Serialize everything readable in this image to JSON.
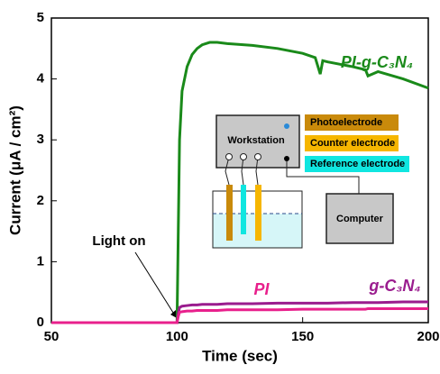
{
  "chart_data": {
    "type": "line",
    "xlabel": "Time (sec)",
    "ylabel": "Current (μA / cm²)",
    "xlim": [
      50,
      200
    ],
    "xticks": [
      50,
      100,
      150,
      200
    ],
    "ylim": [
      0,
      5
    ],
    "yticks": [
      0,
      1,
      2,
      3,
      4,
      5
    ],
    "x": [
      50,
      99,
      100,
      100.5,
      101,
      102,
      104,
      106,
      108,
      110,
      113,
      116,
      120,
      130,
      140,
      150,
      155,
      157,
      158,
      160,
      170,
      175,
      176,
      180,
      190,
      200
    ],
    "series": [
      {
        "name": "PI-g-C₃N₄",
        "color": "#1a8a1a",
        "values": [
          0,
          0,
          0,
          1.5,
          3.0,
          3.8,
          4.2,
          4.4,
          4.5,
          4.56,
          4.6,
          4.6,
          4.58,
          4.55,
          4.5,
          4.42,
          4.35,
          4.08,
          4.3,
          4.28,
          4.2,
          4.15,
          4.05,
          4.12,
          4.0,
          3.85
        ]
      },
      {
        "name": "g-C₃N₄",
        "color": "#9a1c8e",
        "values": [
          0,
          0,
          0,
          0.15,
          0.25,
          0.27,
          0.28,
          0.29,
          0.29,
          0.3,
          0.3,
          0.3,
          0.31,
          0.31,
          0.32,
          0.32,
          0.32,
          0.32,
          0.32,
          0.32,
          0.33,
          0.33,
          0.33,
          0.33,
          0.34,
          0.34
        ]
      },
      {
        "name": "PI",
        "color": "#e8208c",
        "values": [
          0,
          0,
          0,
          0.1,
          0.17,
          0.18,
          0.19,
          0.19,
          0.2,
          0.2,
          0.2,
          0.2,
          0.21,
          0.21,
          0.21,
          0.22,
          0.22,
          0.22,
          0.22,
          0.22,
          0.22,
          0.22,
          0.23,
          0.23,
          0.23,
          0.23
        ]
      }
    ],
    "annotation": "Light on",
    "inset": {
      "workstation": "Workstation",
      "photoelectrode": "Photoelectrode",
      "counter": "Counter electrode",
      "reference": "Reference electrode",
      "computer": "Computer"
    }
  }
}
